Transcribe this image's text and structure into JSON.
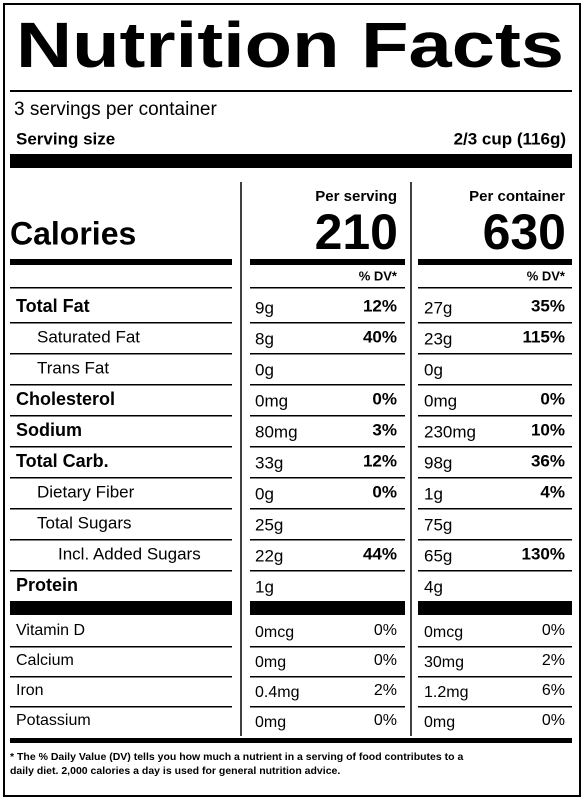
{
  "title": "Nutrition Facts",
  "servings": "3 servings per container",
  "serving_size_label": "Serving size",
  "serving_size": "2/3 cup (116g)",
  "per_serving": "Per serving",
  "per_container": "Per container",
  "calories_label": "Calories",
  "calories_serving": "210",
  "calories_container": "630",
  "dv_serving": "% DV*",
  "dv_container": "% DV*",
  "nutrients": [
    {
      "name": "Total Fat",
      "bold": true,
      "indent": 0,
      "serving_amount": "9g",
      "serving_dv": "12%",
      "container_amount": "27g",
      "container_dv": "35%"
    },
    {
      "name": "Saturated Fat",
      "bold": false,
      "indent": 1,
      "serving_amount": "8g",
      "serving_dv": "40%",
      "container_amount": "23g",
      "container_dv": "115%"
    },
    {
      "name": "Trans Fat",
      "bold": false,
      "indent": 1,
      "serving_amount": "0g",
      "serving_dv": null,
      "container_amount": "0g",
      "container_dv": null
    },
    {
      "name": "Cholesterol",
      "bold": true,
      "indent": 0,
      "serving_amount": "0mg",
      "serving_dv": "0%",
      "container_amount": "0mg",
      "container_dv": "0%"
    },
    {
      "name": "Sodium",
      "bold": true,
      "indent": 0,
      "serving_amount": "80mg",
      "serving_dv": "3%",
      "container_amount": "230mg",
      "container_dv": "10%"
    },
    {
      "name": "Total Carb.",
      "bold": true,
      "indent": 0,
      "serving_amount": "33g",
      "serving_dv": "12%",
      "container_amount": "98g",
      "container_dv": "36%"
    },
    {
      "name": "Dietary Fiber",
      "bold": false,
      "indent": 1,
      "serving_amount": "0g",
      "serving_dv": "0%",
      "container_amount": "1g",
      "container_dv": "4%"
    },
    {
      "name": "Total Sugars",
      "bold": false,
      "indent": 1,
      "serving_amount": "25g",
      "serving_dv": null,
      "container_amount": "75g",
      "container_dv": null
    },
    {
      "name": "Incl. Added Sugars",
      "bold": false,
      "indent": 2,
      "serving_amount": "22g",
      "serving_dv": "44%",
      "container_amount": "65g",
      "container_dv": "130%"
    },
    {
      "name": "Protein",
      "bold": true,
      "indent": 0,
      "serving_amount": "1g",
      "serving_dv": null,
      "container_amount": "4g",
      "container_dv": null
    }
  ],
  "vitamins": [
    {
      "name": "Vitamin D",
      "serving_amount": "0mcg",
      "serving_dv": "0%",
      "container_amount": "0mcg",
      "container_dv": "0%"
    },
    {
      "name": "Calcium",
      "serving_amount": "0mg",
      "serving_dv": "0%",
      "container_amount": "30mg",
      "container_dv": "2%"
    },
    {
      "name": "Iron",
      "serving_amount": "0.4mg",
      "serving_dv": "2%",
      "container_amount": "1.2mg",
      "container_dv": "6%"
    },
    {
      "name": "Potassium",
      "serving_amount": "0mg",
      "serving_dv": "0%",
      "container_amount": "0mg",
      "container_dv": "0%"
    }
  ],
  "footnote": [
    "* The % Daily Value (DV) tells you how much a nutrient in a serving of food contributes to a",
    "daily diet. 2,000 calories a day is used for general nutrition advice."
  ]
}
